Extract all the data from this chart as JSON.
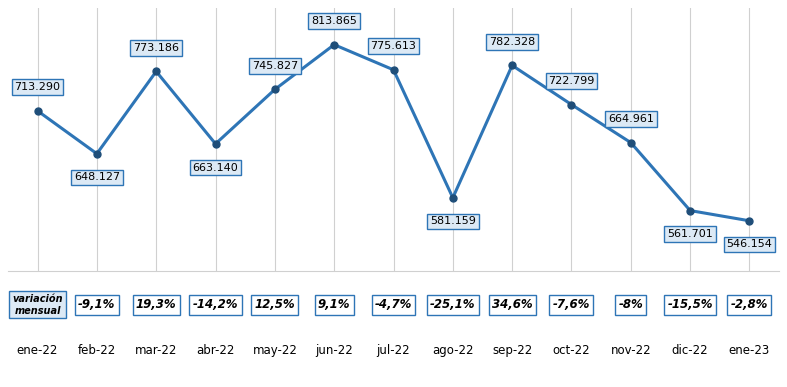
{
  "months": [
    "ene-22",
    "feb-22",
    "mar-22",
    "abr-22",
    "may-22",
    "jun-22",
    "jul-22",
    "ago-22",
    "sep-22",
    "oct-22",
    "nov-22",
    "dic-22",
    "ene-23"
  ],
  "values": [
    713.29,
    648.127,
    773.186,
    663.14,
    745.827,
    813.865,
    775.613,
    581.159,
    782.328,
    722.799,
    664.961,
    561.701,
    546.154
  ],
  "value_labels": [
    "713.290",
    "648.127",
    "773.186",
    "663.140",
    "745.827",
    "813.865",
    "775.613",
    "581.159",
    "782.328",
    "722.799",
    "664.961",
    "561.701",
    "546.154"
  ],
  "variations": [
    "variación\nmensual",
    "-9,1%",
    "19,3%",
    "-14,2%",
    "12,5%",
    "9,1%",
    "-4,7%",
    "-25,1%",
    "34,6%",
    "-7,6%",
    "-8%",
    "-15,5%",
    "-2,8%"
  ],
  "line_color": "#2E75B6",
  "marker_color": "#1F4E79",
  "label_box_facecolor": "#dce9f5",
  "label_box_edge": "#2E75B6",
  "variation_box_edge": "#2E75B6",
  "variation_box_fill": "#ffffff",
  "header_box_fill": "#dce9f5",
  "background_color": "#ffffff",
  "grid_color": "#d0d0d0",
  "ylim": [
    470,
    870
  ],
  "label_fontsize": 8.0,
  "tick_fontsize": 8.5,
  "variation_fontsize": 8.5,
  "label_offsets_y": [
    1,
    -1,
    1,
    -1,
    1,
    1,
    1,
    -1,
    1,
    1,
    1,
    -1,
    -1
  ],
  "label_offsets_x": [
    0,
    0,
    0,
    0,
    0,
    0,
    0,
    0,
    0,
    0,
    0,
    0,
    0
  ]
}
